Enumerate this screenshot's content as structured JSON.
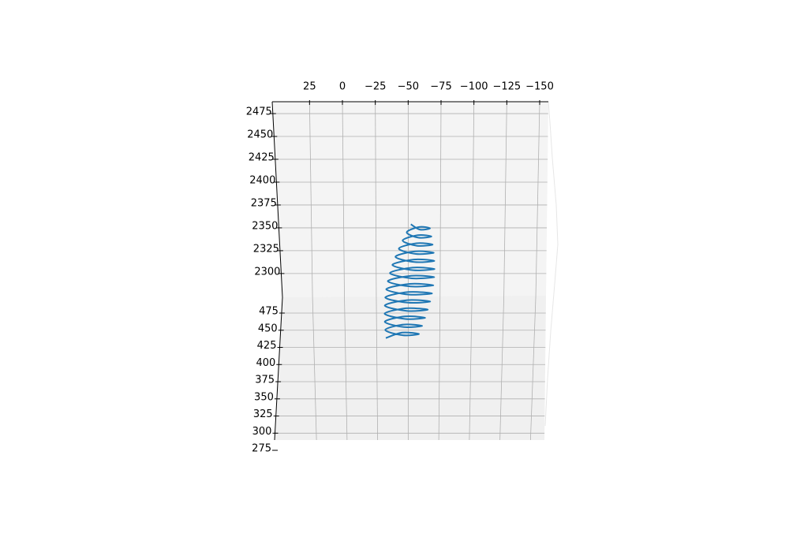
{
  "chart_data": {
    "type": "line3d",
    "color": "#1f77b4",
    "grid": true,
    "xlim": [
      53.4,
      -156.6
    ],
    "xticks": [
      25,
      0,
      {
        "value": -25,
        "label": "−25"
      },
      {
        "value": -50,
        "label": "−50"
      },
      {
        "value": -75,
        "label": "−75"
      },
      {
        "value": -100,
        "label": "−100"
      },
      {
        "value": -125,
        "label": "−125"
      },
      {
        "value": -150,
        "label": "−150"
      }
    ],
    "ylim": [
      2274,
      2488
    ],
    "yticks": [
      2300,
      2325,
      2350,
      2375,
      2400,
      2425,
      2450,
      2475
    ],
    "zlim": [
      290,
      498
    ],
    "zticks": [
      275,
      300,
      325,
      350,
      375,
      400,
      425,
      450,
      475
    ],
    "x": [
      -33.0,
      -45.3,
      -58.2,
      -45.8,
      -32.6,
      -46.3,
      -60.6,
      -46.8,
      -32.2,
      -47.3,
      -62.9,
      -47.8,
      -32.1,
      -48.3,
      -64.9,
      -48.8,
      -32.2,
      -49.3,
      -66.7,
      -49.8,
      -32.6,
      -50.3,
      -68.1,
      -50.8,
      -33.3,
      -51.3,
      -69.1,
      -51.8,
      -34.5,
      -52.3,
      -69.8,
      -52.8,
      -36.1,
      -53.3,
      -70.0,
      -53.8,
      -38.0,
      -54.3,
      -69.9,
      -54.8,
      -40.3,
      -55.3,
      -69.4,
      -55.8,
      -42.9,
      -56.3,
      -68.6,
      -56.8,
      -45.8,
      -57.3,
      -67.7,
      -57.8,
      -48.9,
      -58.3,
      -66.6,
      -58.8,
      -52.0
    ],
    "y": [
      2330.0,
      2339.5,
      2335.0,
      2330.4,
      2339.9,
      2349.4,
      2344.9,
      2340.4,
      2349.9,
      2359.3,
      2354.8,
      2350.3,
      2359.8,
      2369.3,
      2364.7,
      2360.2,
      2369.7,
      2379.2,
      2374.7,
      2370.2,
      2379.6,
      2389.1,
      2384.6,
      2380.1,
      2389.6,
      2399.1,
      2394.5,
      2390.0,
      2399.5,
      2409.0,
      2404.5,
      2399.9,
      2409.4,
      2418.9,
      2414.4,
      2409.9,
      2419.4,
      2428.8,
      2424.3,
      2419.8,
      2429.3,
      2438.8,
      2434.2,
      2429.7,
      2439.2,
      2448.7,
      2444.2,
      2439.7,
      2449.1,
      2458.6,
      2454.1,
      2449.6,
      2459.1,
      2468.5,
      2464.0,
      2459.5,
      2469.0
    ],
    "z": [
      400,
      401.3,
      402.5,
      403.8,
      405,
      406.3,
      407.5,
      408.8,
      410,
      411.3,
      412.5,
      413.8,
      415,
      416.3,
      417.5,
      418.8,
      420,
      421.3,
      422.5,
      423.8,
      425,
      426.3,
      427.5,
      428.8,
      430,
      431.3,
      432.5,
      433.8,
      435,
      436.3,
      437.5,
      438.8,
      440,
      441.3,
      442.5,
      443.8,
      445,
      446.3,
      447.5,
      448.8,
      450,
      451.3,
      452.5,
      453.8,
      455,
      456.3,
      457.5,
      458.8,
      460,
      461.3,
      462.5,
      463.8,
      465,
      466.3,
      467.5,
      468.8,
      470
    ]
  }
}
